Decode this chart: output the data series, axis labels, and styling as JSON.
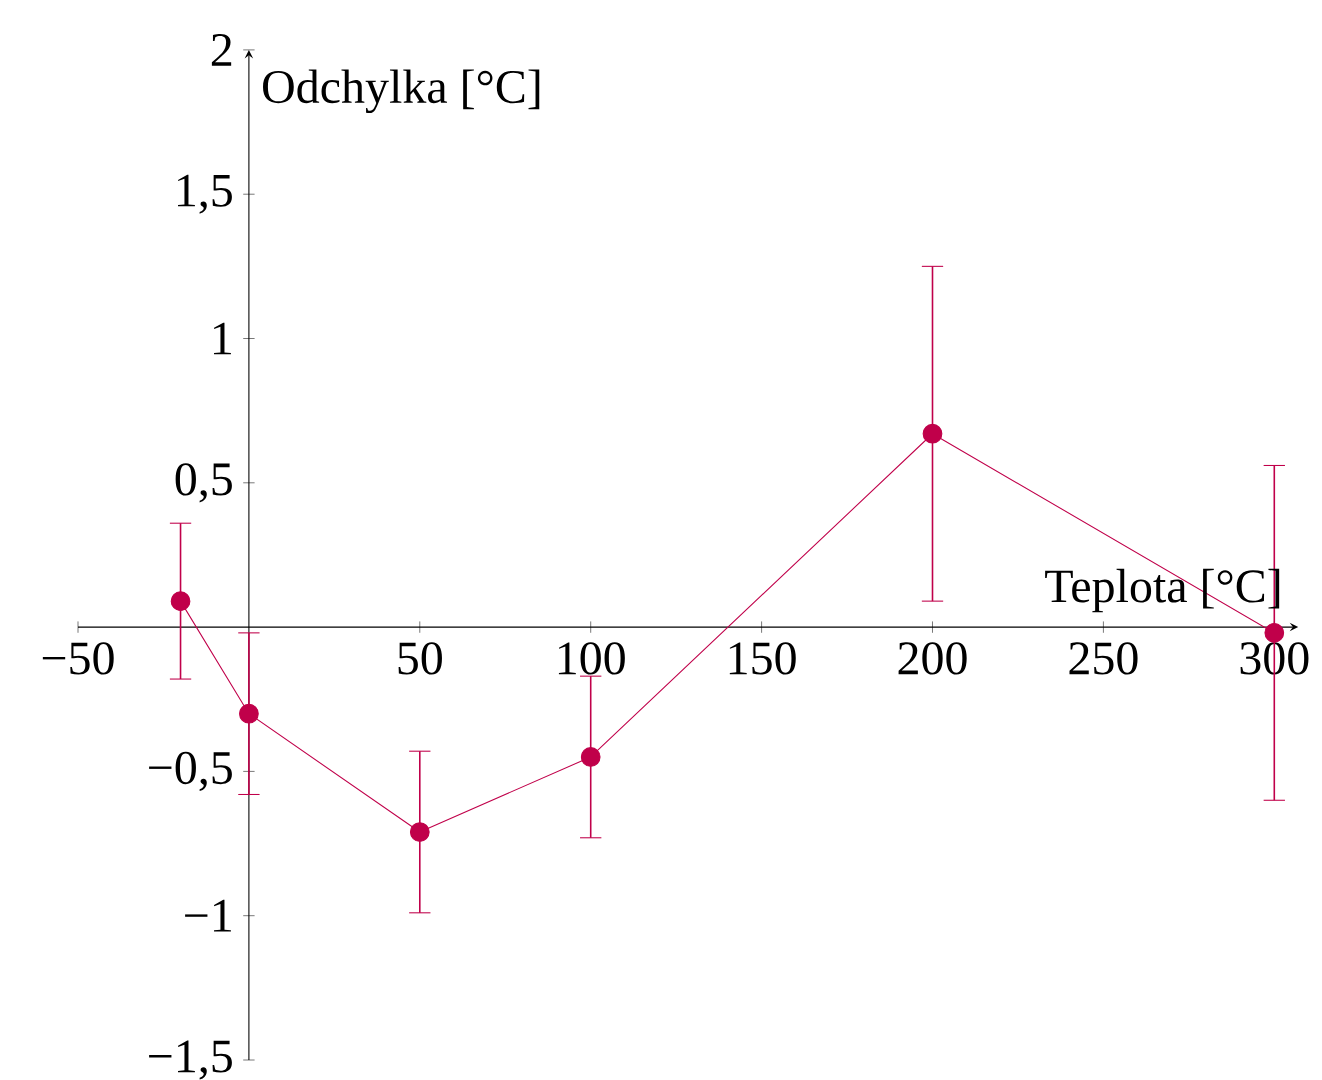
{
  "chart_data": {
    "type": "line",
    "xlabel": "Teplota [°C]",
    "ylabel": "Odchylka [°C]",
    "x": [
      -20,
      0,
      50,
      100,
      200,
      300
    ],
    "series": [
      {
        "color": "#c0004a",
        "values": [
          0.09,
          -0.3,
          -0.71,
          -0.45,
          0.67,
          -0.02
        ],
        "errors": [
          0.27,
          0.28,
          0.28,
          0.28,
          0.58,
          0.58
        ]
      }
    ],
    "xlim": [
      -50,
      307
    ],
    "ylim": [
      -1.5,
      2
    ],
    "xticks": [
      {
        "value": -50,
        "label": "−50"
      },
      {
        "value": 0,
        "label": null
      },
      50,
      100,
      150,
      200,
      250,
      300
    ],
    "yticks": [
      {
        "value": -1.5,
        "label": "−1,5"
      },
      {
        "value": -1,
        "label": "−1"
      },
      {
        "value": -0.5,
        "label": "−0,5"
      },
      {
        "value": 0,
        "label": null
      },
      {
        "value": 0.5,
        "label": "0,5"
      },
      {
        "value": 1,
        "label": "1"
      },
      {
        "value": 1.5,
        "label": "1,5"
      },
      {
        "value": 2,
        "label": "2"
      }
    ],
    "marker": "circle",
    "line_style": "solid"
  }
}
